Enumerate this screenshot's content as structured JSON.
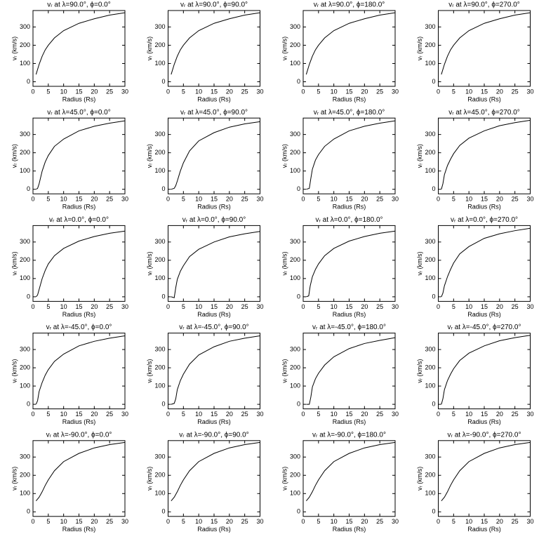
{
  "chart_data": [
    {
      "type": "line",
      "title": "vᵣ at λ=90.0°, ϕ=0.0°",
      "xlabel": "Radius (Rs)",
      "ylabel": "vᵣ (km/s)",
      "color": "#000000",
      "xlim": [
        0,
        30
      ],
      "ylim": [
        -25,
        390
      ],
      "xticks": [
        0,
        5,
        10,
        15,
        20,
        25,
        30
      ],
      "yticks": [
        0,
        100,
        200,
        300
      ],
      "x": [
        1,
        2,
        3,
        4,
        5,
        7,
        10,
        15,
        20,
        25,
        30
      ],
      "values": [
        40,
        95,
        140,
        175,
        200,
        240,
        280,
        320,
        345,
        365,
        378
      ]
    },
    {
      "type": "line",
      "title": "vᵣ at λ=90.0°, ϕ=90.0°",
      "xlabel": "Radius (Rs)",
      "ylabel": "vᵣ (km/s)",
      "color": "#000000",
      "xlim": [
        0,
        30
      ],
      "ylim": [
        -25,
        390
      ],
      "xticks": [
        0,
        5,
        10,
        15,
        20,
        25,
        30
      ],
      "yticks": [
        0,
        100,
        200,
        300
      ],
      "x": [
        1,
        2,
        3,
        4,
        5,
        7,
        10,
        15,
        20,
        25,
        30
      ],
      "values": [
        40,
        95,
        140,
        175,
        200,
        240,
        280,
        320,
        345,
        365,
        378
      ]
    },
    {
      "type": "line",
      "title": "vᵣ at λ=90.0°, ϕ=180.0°",
      "xlabel": "Radius (Rs)",
      "ylabel": "vᵣ (km/s)",
      "color": "#000000",
      "xlim": [
        0,
        30
      ],
      "ylim": [
        -25,
        390
      ],
      "xticks": [
        0,
        5,
        10,
        15,
        20,
        25,
        30
      ],
      "yticks": [
        0,
        100,
        200,
        300
      ],
      "x": [
        1,
        2,
        3,
        4,
        5,
        7,
        10,
        15,
        20,
        25,
        30
      ],
      "values": [
        40,
        95,
        140,
        175,
        200,
        240,
        280,
        320,
        345,
        365,
        378
      ]
    },
    {
      "type": "line",
      "title": "vᵣ at λ=90.0°, ϕ=270.0°",
      "xlabel": "Radius (Rs)",
      "ylabel": "vᵣ (km/s)",
      "color": "#000000",
      "xlim": [
        0,
        30
      ],
      "ylim": [
        -25,
        390
      ],
      "xticks": [
        0,
        5,
        10,
        15,
        20,
        25,
        30
      ],
      "yticks": [
        0,
        100,
        200,
        300
      ],
      "x": [
        1,
        2,
        3,
        4,
        5,
        7,
        10,
        15,
        20,
        25,
        30
      ],
      "values": [
        40,
        95,
        140,
        175,
        200,
        240,
        280,
        320,
        345,
        365,
        378
      ]
    },
    {
      "type": "line",
      "title": "vᵣ at λ=45.0°, ϕ=0.0°",
      "xlabel": "Radius (Rs)",
      "ylabel": "vᵣ (km/s)",
      "color": "#000000",
      "xlim": [
        0,
        30
      ],
      "ylim": [
        -25,
        390
      ],
      "xticks": [
        0,
        5,
        10,
        15,
        20,
        25,
        30
      ],
      "yticks": [
        0,
        100,
        200,
        300
      ],
      "x": [
        1,
        1.5,
        2,
        3,
        4,
        5,
        7,
        10,
        15,
        20,
        25,
        30
      ],
      "values": [
        0,
        5,
        30,
        100,
        150,
        185,
        235,
        275,
        320,
        345,
        362,
        375
      ]
    },
    {
      "type": "line",
      "title": "vᵣ at λ=45.0°, ϕ=90.0°",
      "xlabel": "Radius (Rs)",
      "ylabel": "vᵣ (km/s)",
      "color": "#000000",
      "xlim": [
        0,
        30
      ],
      "ylim": [
        -25,
        390
      ],
      "xticks": [
        0,
        5,
        10,
        15,
        20,
        25,
        30
      ],
      "yticks": [
        0,
        100,
        200,
        300
      ],
      "x": [
        1,
        2,
        2.5,
        3,
        4,
        5,
        7,
        10,
        15,
        20,
        25,
        30
      ],
      "values": [
        0,
        5,
        20,
        45,
        100,
        145,
        210,
        265,
        310,
        340,
        358,
        370
      ]
    },
    {
      "type": "line",
      "title": "vᵣ at λ=45.0°, ϕ=180.0°",
      "xlabel": "Radius (Rs)",
      "ylabel": "vᵣ (km/s)",
      "color": "#000000",
      "xlim": [
        0,
        30
      ],
      "ylim": [
        -25,
        390
      ],
      "xticks": [
        0,
        5,
        10,
        15,
        20,
        25,
        30
      ],
      "yticks": [
        0,
        100,
        200,
        300
      ],
      "x": [
        1,
        2,
        2.5,
        3,
        4,
        5,
        7,
        10,
        15,
        20,
        25,
        30
      ],
      "values": [
        0,
        5,
        60,
        110,
        160,
        190,
        235,
        275,
        320,
        345,
        362,
        375
      ]
    },
    {
      "type": "line",
      "title": "vᵣ at λ=45.0°, ϕ=270.0°",
      "xlabel": "Radius (Rs)",
      "ylabel": "vᵣ (km/s)",
      "color": "#000000",
      "xlim": [
        0,
        30
      ],
      "ylim": [
        -25,
        390
      ],
      "xticks": [
        0,
        5,
        10,
        15,
        20,
        25,
        30
      ],
      "yticks": [
        0,
        100,
        200,
        300
      ],
      "x": [
        1,
        1.5,
        2,
        3,
        4,
        5,
        7,
        10,
        15,
        20,
        25,
        30
      ],
      "values": [
        0,
        30,
        80,
        130,
        165,
        195,
        240,
        280,
        320,
        348,
        365,
        378
      ]
    },
    {
      "type": "line",
      "title": "vᵣ at λ=0.0°, ϕ=0.0°",
      "xlabel": "Radius (Rs)",
      "ylabel": "vᵣ (km/s)",
      "color": "#000000",
      "xlim": [
        0,
        30
      ],
      "ylim": [
        -25,
        390
      ],
      "xticks": [
        0,
        5,
        10,
        15,
        20,
        25,
        30
      ],
      "yticks": [
        0,
        100,
        200,
        300
      ],
      "x": [
        1,
        1.5,
        2,
        3,
        4,
        5,
        7,
        10,
        15,
        20,
        25,
        30
      ],
      "values": [
        0,
        10,
        40,
        100,
        145,
        180,
        225,
        265,
        305,
        330,
        348,
        360
      ]
    },
    {
      "type": "line",
      "title": "vᵣ at λ=0.0°, ϕ=90.0°",
      "xlabel": "Radius (Rs)",
      "ylabel": "vᵣ (km/s)",
      "color": "#000000",
      "xlim": [
        0,
        30
      ],
      "ylim": [
        -25,
        390
      ],
      "xticks": [
        0,
        5,
        10,
        15,
        20,
        25,
        30
      ],
      "yticks": [
        0,
        100,
        200,
        300
      ],
      "x": [
        1,
        2,
        2.5,
        3,
        4,
        5,
        7,
        10,
        15,
        20,
        25,
        30
      ],
      "values": [
        0,
        -5,
        50,
        95,
        140,
        170,
        220,
        260,
        300,
        328,
        345,
        358
      ]
    },
    {
      "type": "line",
      "title": "vᵣ at λ=0.0°, ϕ=180.0°",
      "xlabel": "Radius (Rs)",
      "ylabel": "vᵣ (km/s)",
      "color": "#000000",
      "xlim": [
        0,
        30
      ],
      "ylim": [
        -25,
        390
      ],
      "xticks": [
        0,
        5,
        10,
        15,
        20,
        25,
        30
      ],
      "yticks": [
        0,
        100,
        200,
        300
      ],
      "x": [
        1,
        1.8,
        2.3,
        3,
        4,
        5,
        7,
        10,
        15,
        20,
        25,
        30
      ],
      "values": [
        0,
        5,
        60,
        110,
        150,
        180,
        225,
        265,
        305,
        330,
        348,
        360
      ]
    },
    {
      "type": "line",
      "title": "vᵣ at λ=0.0°, ϕ=270.0°",
      "xlabel": "Radius (Rs)",
      "ylabel": "vᵣ (km/s)",
      "color": "#000000",
      "xlim": [
        0,
        30
      ],
      "ylim": [
        -25,
        390
      ],
      "xticks": [
        0,
        5,
        10,
        15,
        20,
        25,
        30
      ],
      "yticks": [
        0,
        100,
        200,
        300
      ],
      "x": [
        1,
        1.5,
        2,
        3,
        4,
        5,
        7,
        10,
        15,
        20,
        25,
        30
      ],
      "values": [
        0,
        20,
        60,
        110,
        150,
        185,
        235,
        275,
        320,
        345,
        362,
        375
      ]
    },
    {
      "type": "line",
      "title": "vᵣ at λ=-45.0°, ϕ=0.0°",
      "xlabel": "Radius (Rs)",
      "ylabel": "vᵣ (km/s)",
      "color": "#000000",
      "xlim": [
        0,
        30
      ],
      "ylim": [
        -25,
        390
      ],
      "xticks": [
        0,
        5,
        10,
        15,
        20,
        25,
        30
      ],
      "yticks": [
        0,
        100,
        200,
        300
      ],
      "x": [
        1,
        1.5,
        2,
        3,
        4,
        5,
        7,
        10,
        15,
        20,
        25,
        30
      ],
      "values": [
        0,
        20,
        70,
        120,
        160,
        190,
        235,
        275,
        320,
        345,
        362,
        375
      ]
    },
    {
      "type": "line",
      "title": "vᵣ at λ=-45.0°, ϕ=90.0°",
      "xlabel": "Radius (Rs)",
      "ylabel": "vᵣ (km/s)",
      "color": "#000000",
      "xlim": [
        0,
        30
      ],
      "ylim": [
        -25,
        390
      ],
      "xticks": [
        0,
        5,
        10,
        15,
        20,
        25,
        30
      ],
      "yticks": [
        0,
        100,
        200,
        300
      ],
      "x": [
        1,
        2,
        2.5,
        3,
        4,
        5,
        7,
        10,
        15,
        20,
        25,
        30
      ],
      "values": [
        0,
        5,
        30,
        80,
        130,
        165,
        220,
        270,
        315,
        345,
        362,
        375
      ]
    },
    {
      "type": "line",
      "title": "vᵣ at λ=-45.0°, ϕ=180.0°",
      "xlabel": "Radius (Rs)",
      "ylabel": "vᵣ (km/s)",
      "color": "#000000",
      "xlim": [
        0,
        30
      ],
      "ylim": [
        -25,
        390
      ],
      "xticks": [
        0,
        5,
        10,
        15,
        20,
        25,
        30
      ],
      "yticks": [
        0,
        100,
        200,
        300
      ],
      "x": [
        1,
        2,
        2.5,
        3,
        4,
        5,
        7,
        10,
        15,
        20,
        25,
        30
      ],
      "values": [
        0,
        0,
        40,
        95,
        140,
        170,
        215,
        260,
        305,
        333,
        350,
        365
      ]
    },
    {
      "type": "line",
      "title": "vᵣ at λ=-45.0°, ϕ=270.0°",
      "xlabel": "Radius (Rs)",
      "ylabel": "vᵣ (km/s)",
      "color": "#000000",
      "xlim": [
        0,
        30
      ],
      "ylim": [
        -25,
        390
      ],
      "xticks": [
        0,
        5,
        10,
        15,
        20,
        25,
        30
      ],
      "yticks": [
        0,
        100,
        200,
        300
      ],
      "x": [
        1,
        1.5,
        2,
        3,
        4,
        5,
        7,
        10,
        15,
        20,
        25,
        30
      ],
      "values": [
        0,
        30,
        80,
        130,
        165,
        195,
        240,
        280,
        320,
        348,
        365,
        378
      ]
    },
    {
      "type": "line",
      "title": "vᵣ at λ=-90.0°, ϕ=0.0°",
      "xlabel": "Radius (Rs)",
      "ylabel": "vᵣ (km/s)",
      "color": "#000000",
      "xlim": [
        0,
        30
      ],
      "ylim": [
        -25,
        390
      ],
      "xticks": [
        0,
        5,
        10,
        15,
        20,
        25,
        30
      ],
      "yticks": [
        0,
        100,
        200,
        300
      ],
      "x": [
        1,
        2,
        3,
        4,
        5,
        7,
        10,
        15,
        20,
        25,
        30
      ],
      "values": [
        60,
        80,
        110,
        145,
        175,
        225,
        275,
        320,
        350,
        368,
        380
      ]
    },
    {
      "type": "line",
      "title": "vᵣ at λ=-90.0°, ϕ=90.0°",
      "xlabel": "Radius (Rs)",
      "ylabel": "vᵣ (km/s)",
      "color": "#000000",
      "xlim": [
        0,
        30
      ],
      "ylim": [
        -25,
        390
      ],
      "xticks": [
        0,
        5,
        10,
        15,
        20,
        25,
        30
      ],
      "yticks": [
        0,
        100,
        200,
        300
      ],
      "x": [
        1,
        2,
        3,
        4,
        5,
        7,
        10,
        15,
        20,
        25,
        30
      ],
      "values": [
        60,
        80,
        110,
        145,
        175,
        225,
        275,
        320,
        350,
        368,
        380
      ]
    },
    {
      "type": "line",
      "title": "vᵣ at λ=-90.0°, ϕ=180.0°",
      "xlabel": "Radius (Rs)",
      "ylabel": "vᵣ (km/s)",
      "color": "#000000",
      "xlim": [
        0,
        30
      ],
      "ylim": [
        -25,
        390
      ],
      "xticks": [
        0,
        5,
        10,
        15,
        20,
        25,
        30
      ],
      "yticks": [
        0,
        100,
        200,
        300
      ],
      "x": [
        1,
        2,
        3,
        4,
        5,
        7,
        10,
        15,
        20,
        25,
        30
      ],
      "values": [
        60,
        80,
        110,
        145,
        175,
        225,
        275,
        320,
        350,
        368,
        380
      ]
    },
    {
      "type": "line",
      "title": "vᵣ at λ=-90.0°, ϕ=270.0°",
      "xlabel": "Radius (Rs)",
      "ylabel": "vᵣ (km/s)",
      "color": "#000000",
      "xlim": [
        0,
        30
      ],
      "ylim": [
        -25,
        390
      ],
      "xticks": [
        0,
        5,
        10,
        15,
        20,
        25,
        30
      ],
      "yticks": [
        0,
        100,
        200,
        300
      ],
      "x": [
        1,
        2,
        3,
        4,
        5,
        7,
        10,
        15,
        20,
        25,
        30
      ],
      "values": [
        60,
        80,
        110,
        145,
        175,
        225,
        275,
        320,
        350,
        368,
        380
      ]
    }
  ]
}
